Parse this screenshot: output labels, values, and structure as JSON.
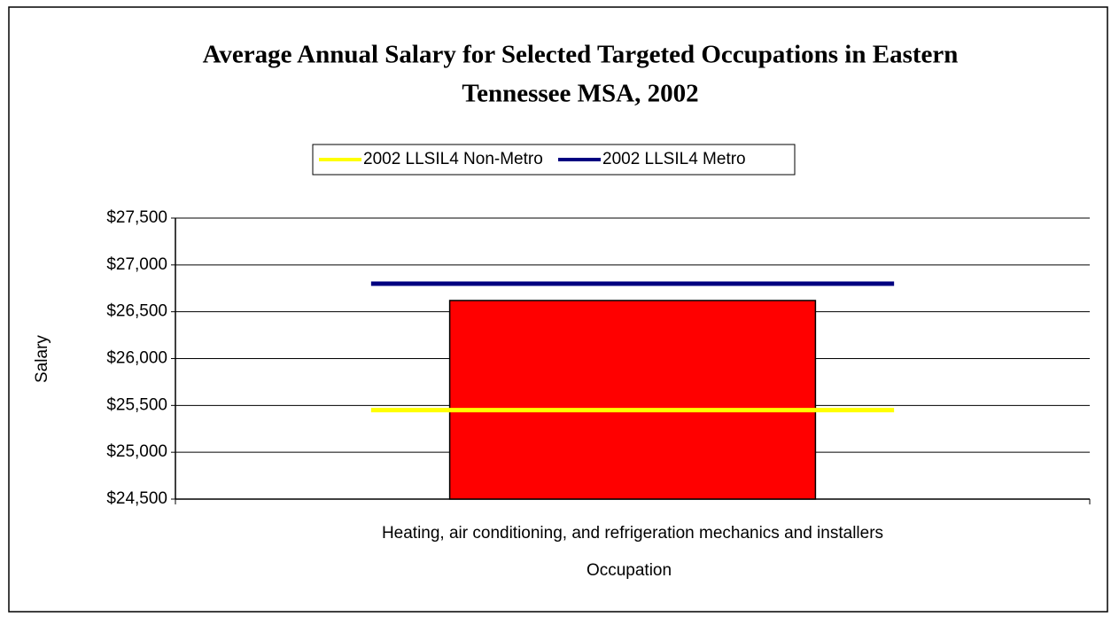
{
  "chart_data": {
    "type": "bar",
    "title": [
      "Average Annual Salary for Selected Targeted Occupations in Eastern",
      "Tennessee MSA, 2002"
    ],
    "x_label": "Occupation",
    "y_label": "Salary",
    "categories": [
      "Heating, air conditioning, and refrigeration mechanics and installers"
    ],
    "bar": {
      "color": "#ff0000",
      "values": [
        26620
      ]
    },
    "lines": [
      {
        "name": "2002 LLSIL4 Non-Metro",
        "color": "#ffff00",
        "values": [
          25450
        ]
      },
      {
        "name": "2002 LLSIL4 Metro",
        "color": "#000080",
        "values": [
          26800
        ]
      }
    ],
    "ylim": [
      24500,
      27500
    ],
    "yticks": [
      {
        "value": 24500,
        "label": "$24,500"
      },
      {
        "value": 25000,
        "label": "$25,000"
      },
      {
        "value": 25500,
        "label": "$25,500"
      },
      {
        "value": 26000,
        "label": "$26,000"
      },
      {
        "value": 26500,
        "label": "$26,500"
      },
      {
        "value": 27000,
        "label": "$27,000"
      },
      {
        "value": 27500,
        "label": "$27,500"
      }
    ],
    "grid": true,
    "legend": "top"
  }
}
